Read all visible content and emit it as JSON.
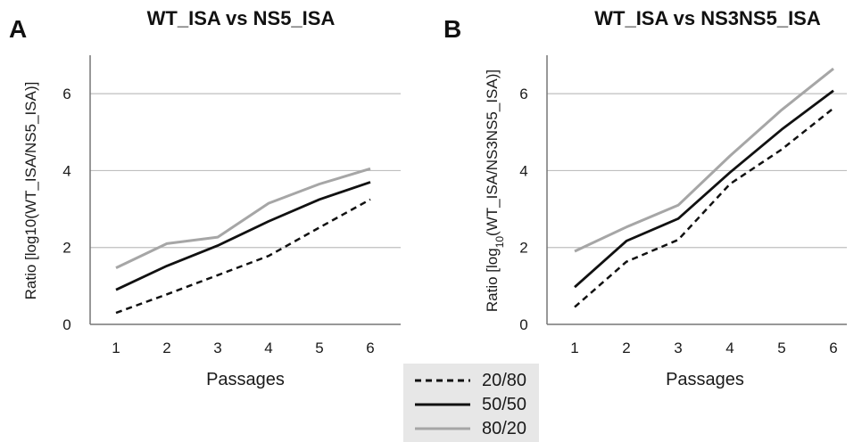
{
  "chart_data": [
    {
      "type": "line",
      "panel_label": "A",
      "title": "WT_ISA vs NS5_ISA",
      "xlabel": "Passages",
      "ylabel": "Ratio [log10(WT_ISA/NS5_ISA)]",
      "categories": [
        "1",
        "2",
        "3",
        "4",
        "5",
        "6"
      ],
      "ylim": [
        0,
        7
      ],
      "yticks": [
        "0",
        "2",
        "4",
        "6"
      ],
      "grid": true,
      "series": [
        {
          "name": "20/80",
          "values": [
            0.3,
            0.78,
            1.28,
            1.78,
            2.52,
            3.25
          ]
        },
        {
          "name": "50/50",
          "values": [
            0.9,
            1.52,
            2.05,
            2.68,
            3.25,
            3.7
          ]
        },
        {
          "name": "80/20",
          "values": [
            1.47,
            2.1,
            2.27,
            3.15,
            3.65,
            4.05
          ]
        }
      ]
    },
    {
      "type": "line",
      "panel_label": "B",
      "title": "WT_ISA vs NS3NS5_ISA",
      "xlabel": "Passages",
      "ylabel": "Ratio [log10(WT_ISA/NS3NS5_ISA)]",
      "categories": [
        "1",
        "2",
        "3",
        "4",
        "5",
        "6"
      ],
      "ylim": [
        0,
        7
      ],
      "yticks": [
        "0",
        "2",
        "4",
        "6"
      ],
      "grid": true,
      "series": [
        {
          "name": "20/80",
          "values": [
            0.45,
            1.63,
            2.2,
            3.65,
            4.55,
            5.62
          ]
        },
        {
          "name": "50/50",
          "values": [
            0.97,
            2.17,
            2.75,
            3.95,
            5.07,
            6.08
          ]
        },
        {
          "name": "80/20",
          "values": [
            1.9,
            2.53,
            3.1,
            4.38,
            5.58,
            6.65
          ]
        }
      ]
    }
  ],
  "legend": {
    "items": [
      {
        "label": "20/80",
        "style": "dashed",
        "color": "#111111"
      },
      {
        "label": "50/50",
        "style": "solid",
        "color": "#111111"
      },
      {
        "label": "80/20",
        "style": "solid",
        "color": "#a6a6a6"
      }
    ],
    "background": "#e7e7e7"
  },
  "colors": {
    "series_20_80": "#111111",
    "series_50_50": "#111111",
    "series_80_20": "#a6a6a6",
    "grid": "#bfbfbf",
    "axis": "#777777"
  }
}
